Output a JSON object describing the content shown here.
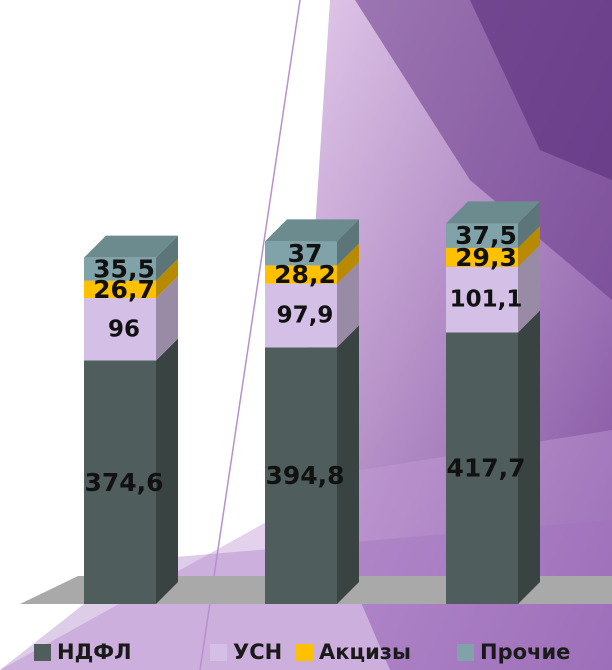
{
  "chart_data": {
    "type": "bar",
    "stacked": true,
    "three_d": true,
    "categories": [
      "",
      "",
      ""
    ],
    "series": [
      {
        "name": "НДФЛ",
        "color": "#4f5d5c",
        "values": [
          374.6,
          394.8,
          417.7
        ],
        "labels": [
          "374,6",
          "394,8",
          "417,7"
        ]
      },
      {
        "name": "УСН",
        "color": "#d4bfe6",
        "values": [
          96,
          97.9,
          101.1
        ],
        "labels": [
          "96",
          "97,9",
          "101,1"
        ]
      },
      {
        "name": "Акцизы",
        "color": "#ffc000",
        "values": [
          26.7,
          28.2,
          29.3
        ],
        "labels": [
          "26,7",
          "28,2",
          "29,3"
        ]
      },
      {
        "name": "Прочие",
        "color": "#7fa3a8",
        "values": [
          35.5,
          37,
          37.5
        ],
        "labels": [
          "35,5",
          "37",
          "37,5"
        ]
      }
    ],
    "title": "",
    "xlabel": "",
    "ylabel": "",
    "ylim": [
      0,
      600
    ],
    "grid": false,
    "legend": "bottom"
  }
}
